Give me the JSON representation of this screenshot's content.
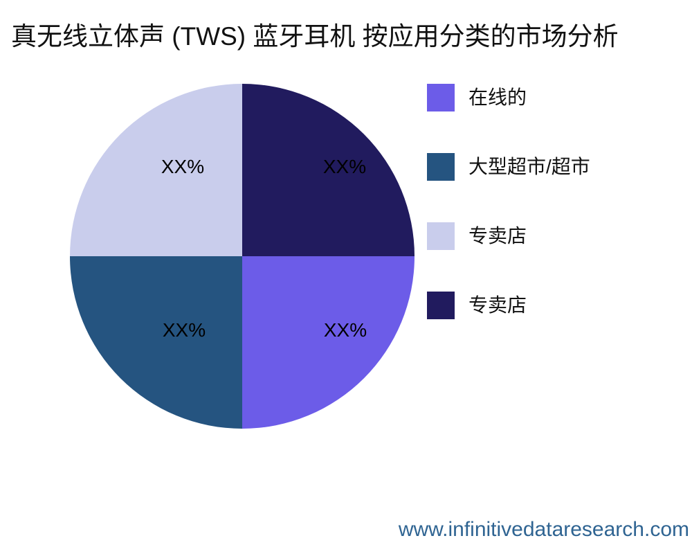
{
  "title": "真无线立体声 (TWS) 蓝牙耳机 按应用分类的市场分析",
  "footer": {
    "website": "www.infinitivedataresearch.com",
    "color": "#2f6492"
  },
  "chart_data": {
    "type": "pie",
    "title": "真无线立体声 (TWS) 蓝牙耳机 按应用分类的市场分析",
    "legend_position": "right",
    "start_angle_deg": 0,
    "direction": "clockwise",
    "slices": [
      {
        "name": "在线的",
        "value": 25,
        "label": "XX%",
        "color": "#6c5ce8"
      },
      {
        "name": "大型超市/超市",
        "value": 25,
        "label": "XX%",
        "color": "#255480"
      },
      {
        "name": "专卖店",
        "value": 25,
        "label": "XX%",
        "color": "#c9cdec"
      },
      {
        "name": "专卖店",
        "value": 25,
        "label": "XX%",
        "color": "#211b5e"
      }
    ]
  }
}
